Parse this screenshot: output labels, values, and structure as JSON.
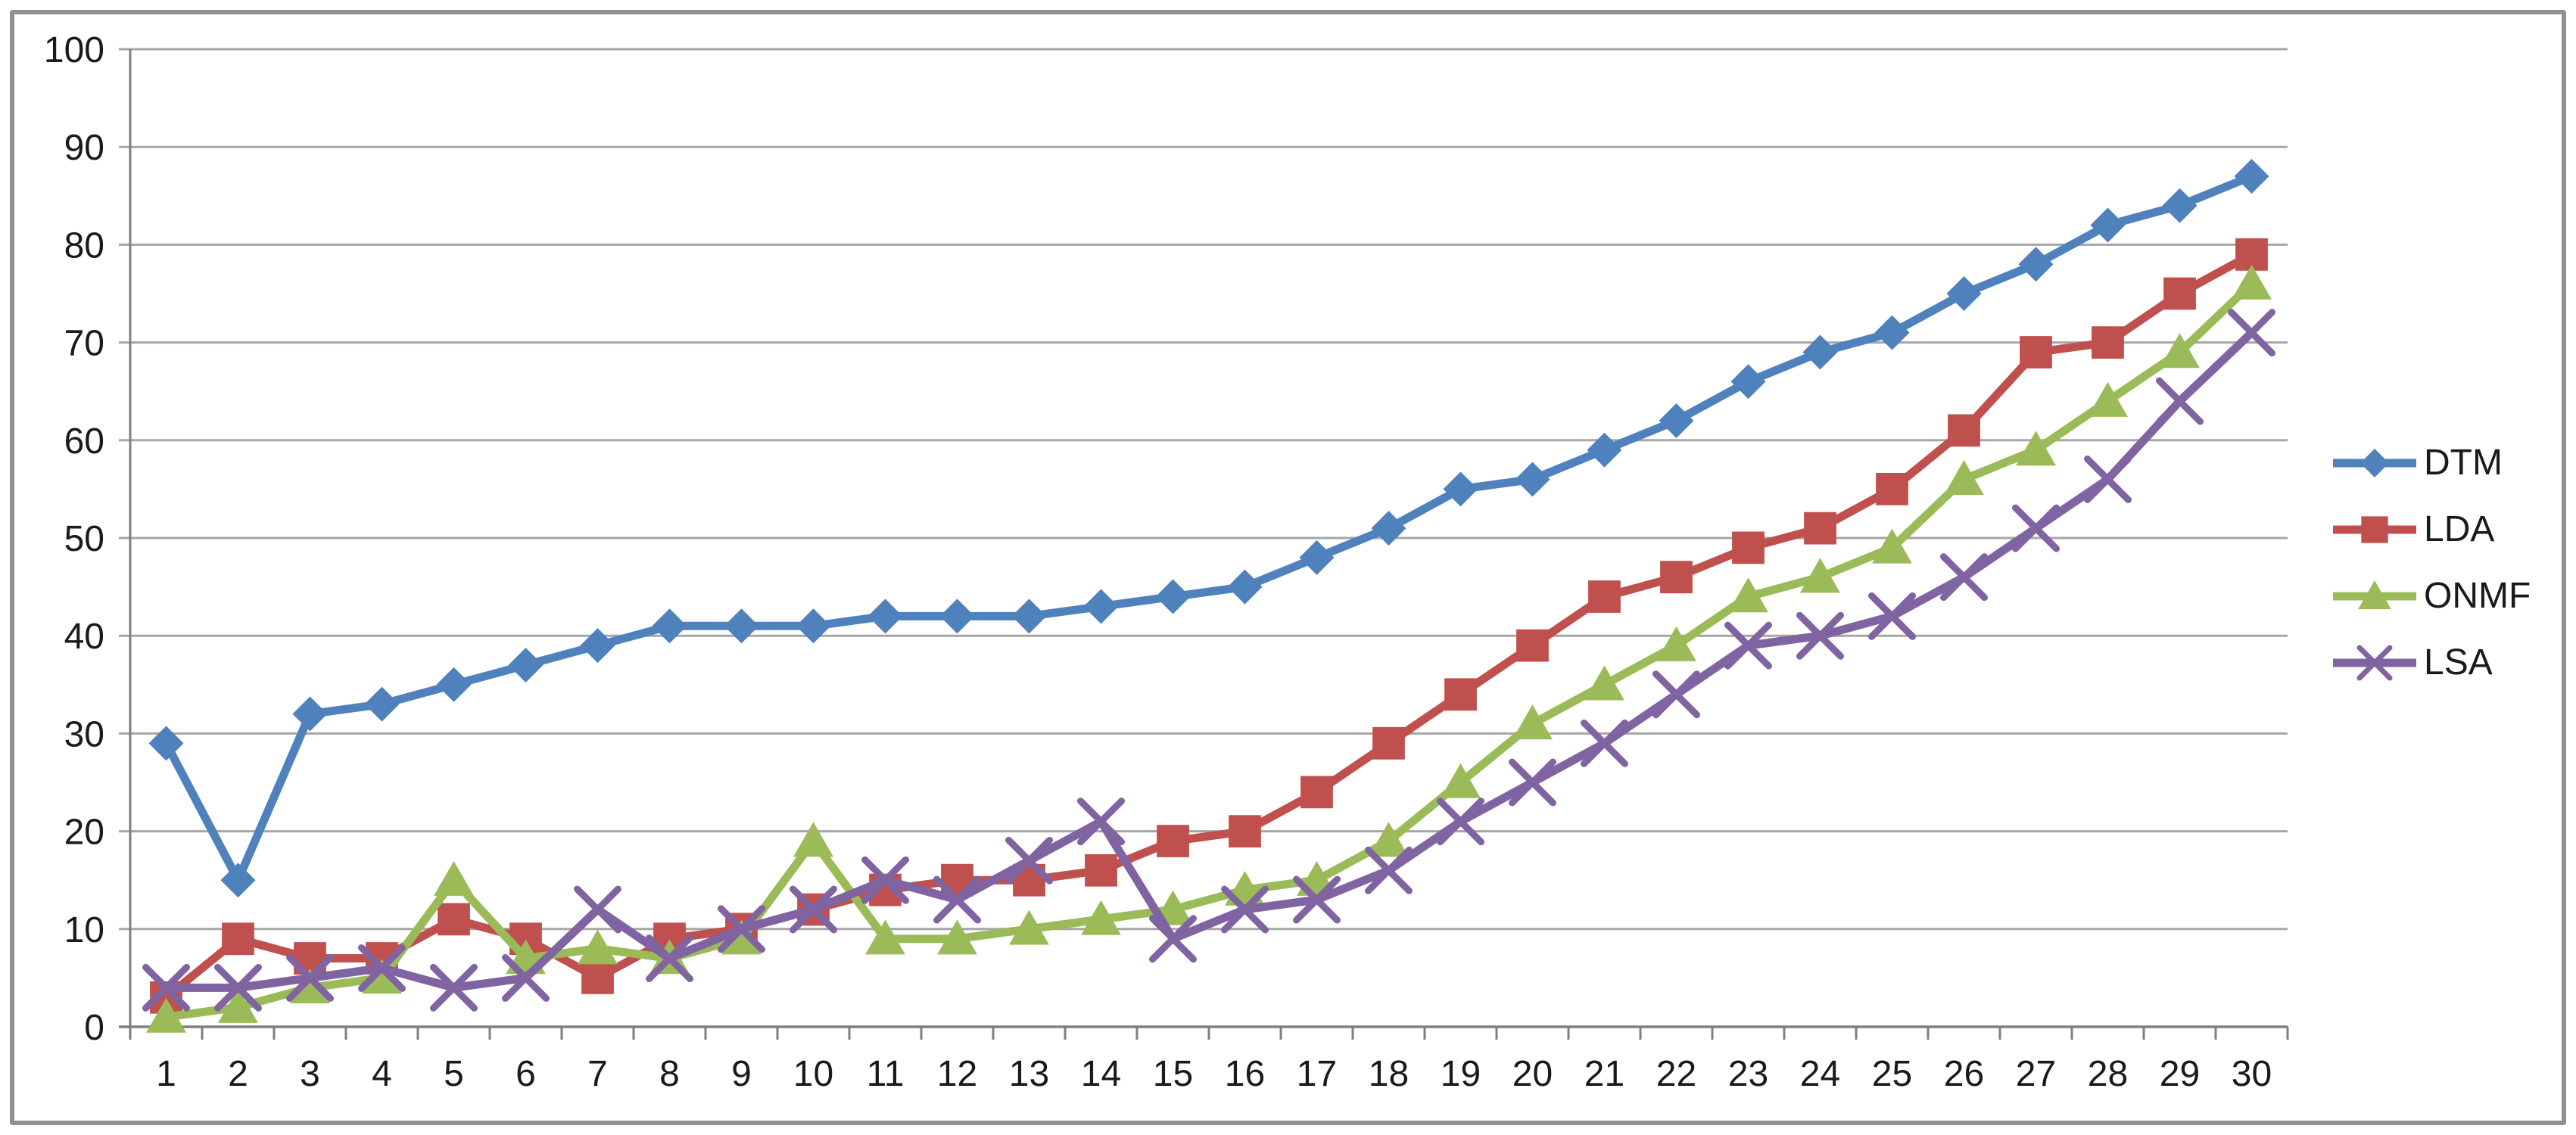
{
  "chart_data": {
    "type": "line",
    "x": [
      1,
      2,
      3,
      4,
      5,
      6,
      7,
      8,
      9,
      10,
      11,
      12,
      13,
      14,
      15,
      16,
      17,
      18,
      19,
      20,
      21,
      22,
      23,
      24,
      25,
      26,
      27,
      28,
      29,
      30
    ],
    "ylim": [
      0,
      100
    ],
    "ytick_step": 10,
    "yticks": [
      0,
      10,
      20,
      30,
      40,
      50,
      60,
      70,
      80,
      90,
      100
    ],
    "grid": true,
    "legend_position": "right",
    "xlabel": "",
    "ylabel": "",
    "series": [
      {
        "name": "DTM",
        "color": "#4F81BD",
        "marker": "diamond",
        "values": [
          29,
          15,
          32,
          33,
          35,
          37,
          39,
          41,
          41,
          41,
          42,
          42,
          42,
          43,
          44,
          45,
          48,
          51,
          55,
          56,
          59,
          62,
          66,
          69,
          71,
          75,
          78,
          82,
          84,
          87
        ]
      },
      {
        "name": "LDA",
        "color": "#C0504D",
        "marker": "square",
        "values": [
          3,
          9,
          7,
          7,
          11,
          9,
          5,
          9,
          10,
          12,
          14,
          15,
          15,
          16,
          19,
          20,
          24,
          29,
          34,
          39,
          44,
          46,
          49,
          51,
          55,
          61,
          69,
          70,
          75,
          79
        ]
      },
      {
        "name": "ONMF",
        "color": "#9BBB59",
        "marker": "triangle",
        "values": [
          1,
          2,
          4,
          5,
          15,
          7,
          8,
          7,
          9,
          19,
          9,
          9,
          10,
          11,
          12,
          14,
          15,
          19,
          25,
          31,
          35,
          39,
          44,
          46,
          49,
          56,
          59,
          64,
          69,
          76
        ]
      },
      {
        "name": "LSA",
        "color": "#8064A2",
        "marker": "x",
        "values": [
          4,
          4,
          5,
          6,
          4,
          5,
          12,
          7,
          10,
          12,
          15,
          13,
          17,
          21,
          9,
          12,
          13,
          16,
          21,
          25,
          29,
          34,
          39,
          40,
          42,
          46,
          51,
          56,
          64,
          71
        ]
      }
    ]
  }
}
